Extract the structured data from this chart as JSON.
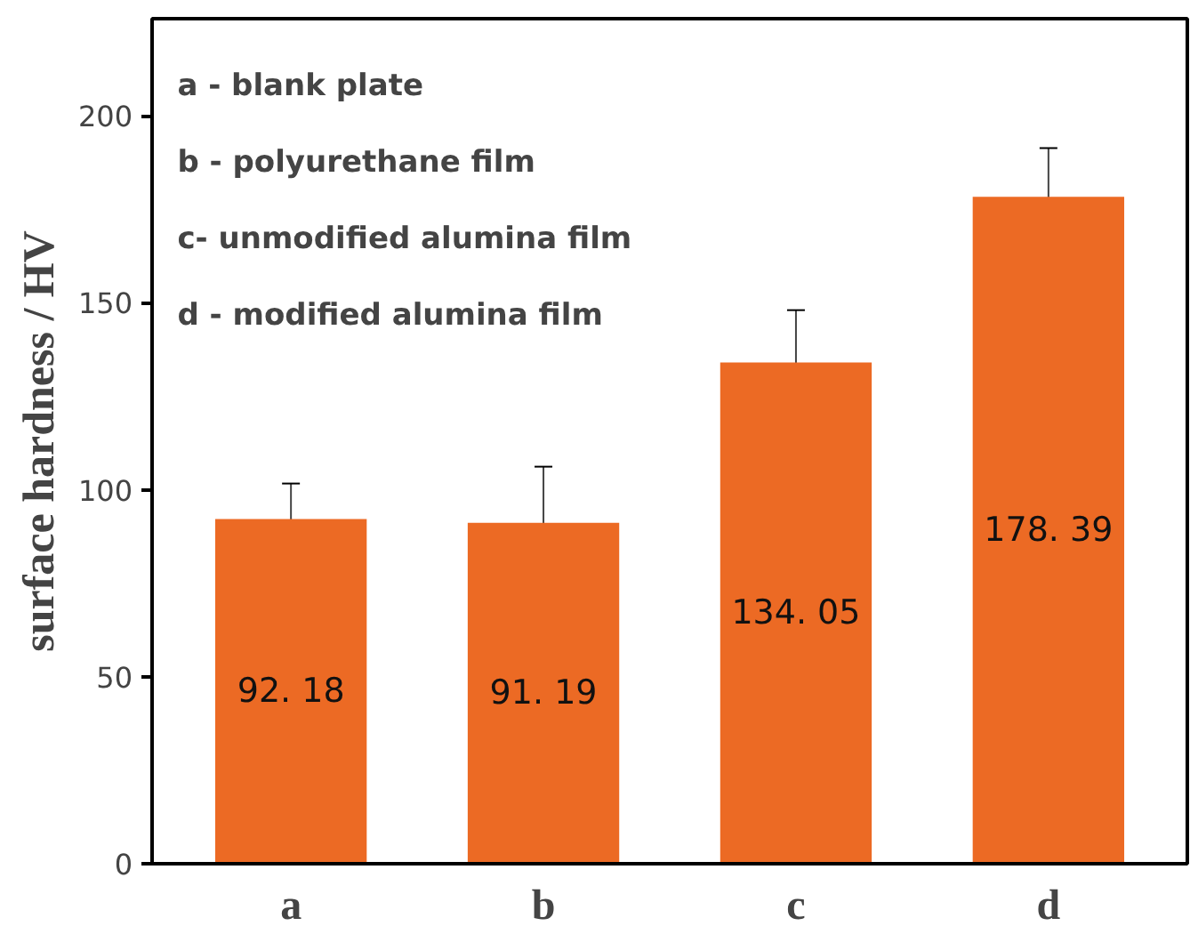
{
  "chart_data": {
    "type": "bar",
    "ylabel": "surface hardness / HV",
    "categories": [
      "a",
      "b",
      "c",
      "d"
    ],
    "values": [
      92.18,
      91.19,
      134.05,
      178.39
    ],
    "value_labels": [
      "92. 18",
      "91. 19",
      "134. 05",
      "178. 39"
    ],
    "errors": [
      9.5,
      15,
      14,
      13
    ],
    "color": "#ec6a24",
    "ylim": [
      0,
      226
    ],
    "yticks": [
      0,
      50,
      100,
      150,
      200
    ],
    "grid": false,
    "annotations": [
      "a - blank plate",
      "b - polyurethane film",
      "c- unmodified alumina film",
      "d - modified alumina film"
    ]
  }
}
